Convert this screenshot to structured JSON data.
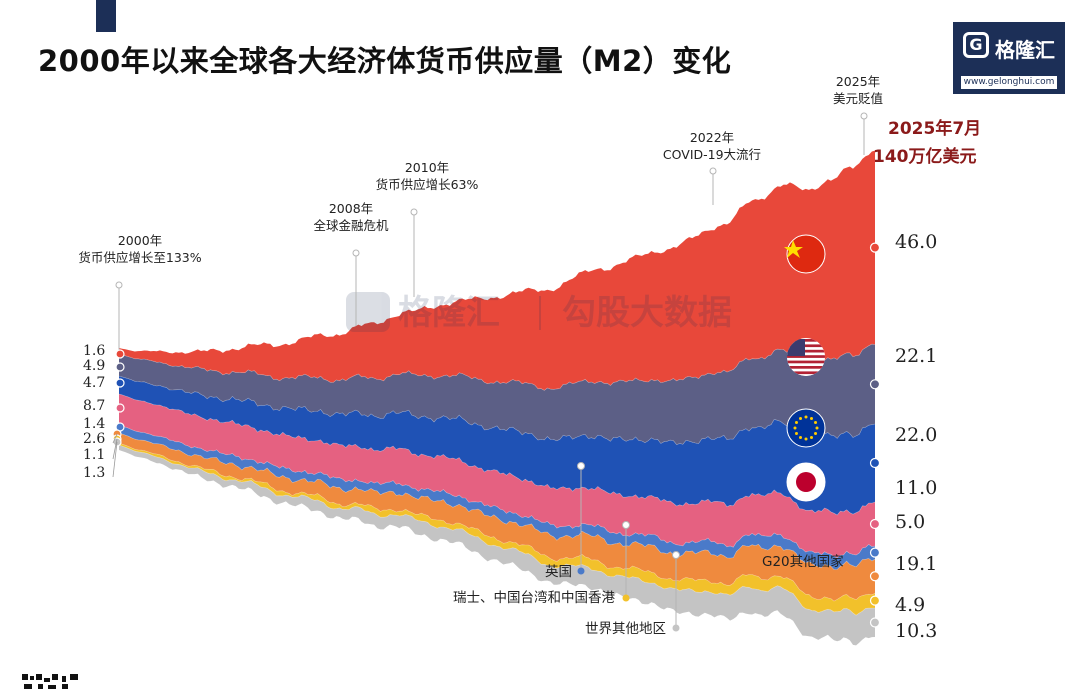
{
  "title": "2000年以来全球各大经济体货币供应量（M2）变化",
  "logo": {
    "mark": "G",
    "name": "格隆汇",
    "url": "www.gelonghui.com"
  },
  "watermark": {
    "brand": "格隆汇",
    "text": "勾股大数据"
  },
  "colors": {
    "china": "#e8483a",
    "usa": "#5c5f86",
    "eurozone": "#1f52b5",
    "japan": "#e56181",
    "uk": "#4a7ac9",
    "g20_other": "#ef8a3e",
    "switzerland_taiwan_hk": "#f2c12b",
    "rest_of_world": "#c4c4c4",
    "end_total_label": "#8b1a1a",
    "title": "#111111",
    "brand": "#1c2f57"
  },
  "chart_data": {
    "type": "area",
    "subtype": "stacked streamgraph",
    "unit": "万亿美元",
    "x_range": [
      "2000",
      "2025年7月"
    ],
    "end_total": {
      "date": "2025年7月",
      "value": "140万亿美元"
    },
    "series": [
      {
        "key": "china",
        "name": "中国",
        "icon": "china-flag-icon",
        "start": 1.6,
        "end": 46.0,
        "start_label": "1.6",
        "end_label": "46.0"
      },
      {
        "key": "usa",
        "name": "美国",
        "icon": "usa-flag-icon",
        "start": 4.9,
        "end": 22.1,
        "start_label": "4.9",
        "end_label": "22.1"
      },
      {
        "key": "eurozone",
        "name": "欧元区",
        "icon": "eu-flag-icon",
        "start": 4.7,
        "end": 22.0,
        "start_label": "4.7",
        "end_label": "22.0"
      },
      {
        "key": "japan",
        "name": "日本",
        "icon": "japan-flag-icon",
        "start": 8.7,
        "end": 11.0,
        "start_label": "8.7",
        "end_label": "11.0"
      },
      {
        "key": "uk",
        "name": "英国",
        "start": 1.4,
        "end": 5.0,
        "start_label": "1.4",
        "end_label": "5.0"
      },
      {
        "key": "g20_other",
        "name": "G20其他国家",
        "start": 2.6,
        "end": 19.1,
        "start_label": "2.6",
        "end_label": "19.1"
      },
      {
        "key": "switzerland_taiwan_hk",
        "name": "瑞士、中国台湾和中国香港",
        "start": 1.1,
        "end": 4.9,
        "start_label": "1.1",
        "end_label": "4.9"
      },
      {
        "key": "rest_of_world",
        "name": "世界其他地区",
        "start": 1.3,
        "end": 10.3,
        "start_label": "1.3",
        "end_label": "10.3"
      }
    ],
    "annotations": [
      {
        "year": 2000,
        "lines": [
          "2000年",
          "货币供应增长至133%"
        ]
      },
      {
        "year": 2008,
        "lines": [
          "2008年",
          "全球金融危机"
        ]
      },
      {
        "year": 2010,
        "lines": [
          "2010年",
          "货币供应增长63%"
        ]
      },
      {
        "year": 2022,
        "lines": [
          "2022年",
          "COVID-19大流行"
        ]
      },
      {
        "year": 2025,
        "lines": [
          "2025年",
          "美元贬值"
        ]
      }
    ]
  }
}
